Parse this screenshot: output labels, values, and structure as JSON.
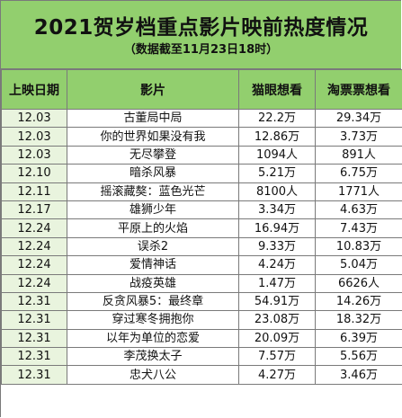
{
  "title": "2021贺岁档重点影片映前热度情况",
  "subtitle": "（数据截至11月23日18时）",
  "columns": [
    "上映日期",
    "影片",
    "猫眼想看",
    "淘票票想看"
  ],
  "rows": [
    [
      "12.03",
      "古董局中局",
      "22.2万",
      "29.34万"
    ],
    [
      "12.03",
      "你的世界如果没有我",
      "12.86万",
      "3.73万"
    ],
    [
      "12.03",
      "无尽攀登",
      "1094人",
      "891人"
    ],
    [
      "12.10",
      "暗杀风暴",
      "5.21万",
      "6.75万"
    ],
    [
      "12.11",
      "摇滚藏獒：蓝色光芒",
      "8100人",
      "1771人"
    ],
    [
      "12.17",
      "雄狮少年",
      "3.34万",
      "4.63万"
    ],
    [
      "12.24",
      "平原上的火焰",
      "16.94万",
      "7.43万"
    ],
    [
      "12.24",
      "误杀2",
      "9.33万",
      "10.83万"
    ],
    [
      "12.24",
      "爱情神话",
      "4.24万",
      "5.04万"
    ],
    [
      "12.24",
      "战疫英雄",
      "1.47万",
      "6626人"
    ],
    [
      "12.31",
      "反贪风暴5：最终章",
      "54.91万",
      "14.26万"
    ],
    [
      "12.31",
      "穿过寒冬拥抱你",
      "23.08万",
      "18.32万"
    ],
    [
      "12.31",
      "以年为单位的恋爱",
      "20.09万",
      "6.39万"
    ],
    [
      "12.31",
      "李茂换太子",
      "7.57万",
      "5.56万"
    ],
    [
      "12.31",
      "忠犬八公",
      "4.27万",
      "3.46万"
    ]
  ],
  "colors": {
    "header_green": "#92cf6e",
    "date_cell_green": "#e9f4de",
    "grid_line": "#7a7a7a"
  }
}
